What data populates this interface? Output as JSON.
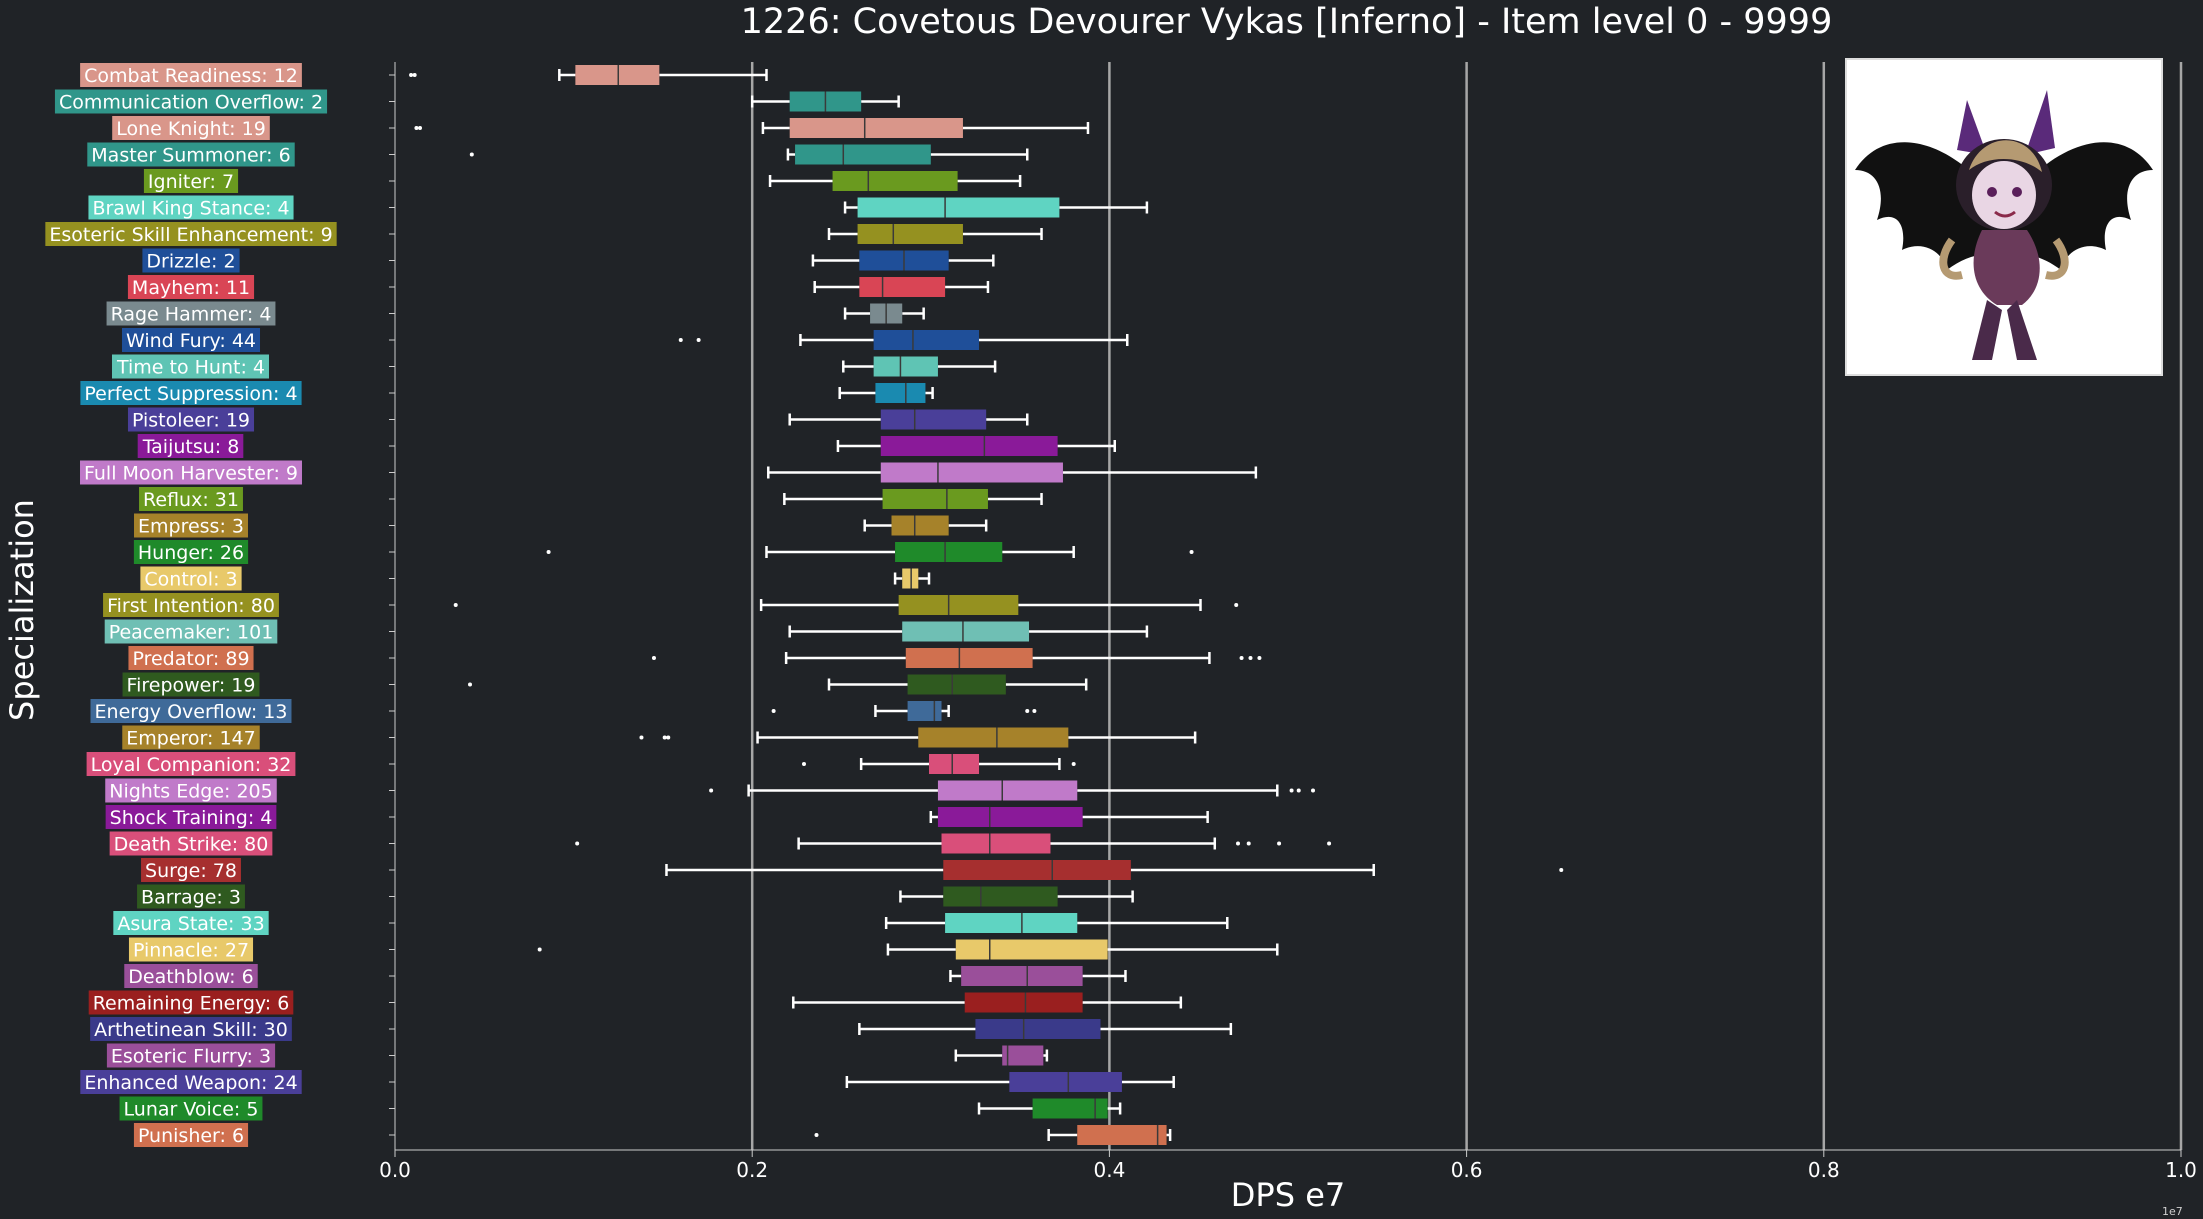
{
  "title": "1226: Covetous Devourer Vykas [Inferno] - Item level 0 - 9999",
  "chart_data": {
    "type": "box",
    "title": "1226: Covetous Devourer Vykas [Inferno] - Item level 0 - 9999",
    "xlabel": "DPS e7",
    "ylabel": "Specialization",
    "xlim": [
      0,
      1.0
    ],
    "x_ticks": [
      "0.0",
      "0.2",
      "0.4",
      "0.6",
      "0.8",
      "1.0"
    ],
    "x_tick_values": [
      0,
      0.2,
      0.4,
      0.6,
      0.8,
      1.0
    ],
    "x_offset_label": "1e7",
    "grid": "vertical",
    "series": [
      {
        "label": "Combat Readiness: 12",
        "color": "#d9968a",
        "whisker_low": 0.092,
        "q1": 0.101,
        "median": 0.125,
        "q3": 0.148,
        "whisker_high": 0.208,
        "outliers": [
          0.009,
          0.011
        ]
      },
      {
        "label": "Communication Overflow: 2",
        "color": "#30968a",
        "whisker_low": 0.2,
        "q1": 0.221,
        "median": 0.241,
        "q3": 0.261,
        "whisker_high": 0.282,
        "outliers": []
      },
      {
        "label": "Lone Knight: 19",
        "color": "#d9968a",
        "whisker_low": 0.206,
        "q1": 0.221,
        "median": 0.263,
        "q3": 0.318,
        "whisker_high": 0.388,
        "outliers": [
          0.012,
          0.014
        ]
      },
      {
        "label": "Master Summoner: 6",
        "color": "#30968a",
        "whisker_low": 0.22,
        "q1": 0.224,
        "median": 0.251,
        "q3": 0.3,
        "whisker_high": 0.354,
        "outliers": [
          0.043
        ]
      },
      {
        "label": "Igniter: 7",
        "color": "#6a9a1f",
        "whisker_low": 0.21,
        "q1": 0.245,
        "median": 0.265,
        "q3": 0.315,
        "whisker_high": 0.35,
        "outliers": []
      },
      {
        "label": "Brawl King Stance: 4",
        "color": "#5fd4c2",
        "whisker_low": 0.252,
        "q1": 0.259,
        "median": 0.308,
        "q3": 0.372,
        "whisker_high": 0.421,
        "outliers": []
      },
      {
        "label": "Esoteric Skill Enhancement: 9",
        "color": "#959120",
        "whisker_low": 0.243,
        "q1": 0.259,
        "median": 0.279,
        "q3": 0.318,
        "whisker_high": 0.362,
        "outliers": []
      },
      {
        "label": "Drizzle: 2",
        "color": "#1f4f99",
        "whisker_low": 0.234,
        "q1": 0.26,
        "median": 0.285,
        "q3": 0.31,
        "whisker_high": 0.335,
        "outliers": []
      },
      {
        "label": "Mayhem: 11",
        "color": "#d94555",
        "whisker_low": 0.235,
        "q1": 0.26,
        "median": 0.273,
        "q3": 0.308,
        "whisker_high": 0.332,
        "outliers": []
      },
      {
        "label": "Rage Hammer: 4",
        "color": "#7a8a8f",
        "whisker_low": 0.252,
        "q1": 0.266,
        "median": 0.275,
        "q3": 0.284,
        "whisker_high": 0.296,
        "outliers": []
      },
      {
        "label": "Wind Fury: 44",
        "color": "#1f4f99",
        "whisker_low": 0.227,
        "q1": 0.268,
        "median": 0.29,
        "q3": 0.327,
        "whisker_high": 0.41,
        "outliers": [
          0.16,
          0.17
        ]
      },
      {
        "label": "Time to Hunt: 4",
        "color": "#5fc4b4",
        "whisker_low": 0.251,
        "q1": 0.268,
        "median": 0.283,
        "q3": 0.304,
        "whisker_high": 0.336,
        "outliers": []
      },
      {
        "label": "Perfect Suppression: 4",
        "color": "#1a8ab0",
        "whisker_low": 0.249,
        "q1": 0.269,
        "median": 0.286,
        "q3": 0.297,
        "whisker_high": 0.301,
        "outliers": []
      },
      {
        "label": "Pistoleer: 19",
        "color": "#4a3f99",
        "whisker_low": 0.221,
        "q1": 0.272,
        "median": 0.291,
        "q3": 0.331,
        "whisker_high": 0.354,
        "outliers": []
      },
      {
        "label": "Taijutsu: 8",
        "color": "#8a1a99",
        "whisker_low": 0.248,
        "q1": 0.272,
        "median": 0.33,
        "q3": 0.371,
        "whisker_high": 0.403,
        "outliers": []
      },
      {
        "label": "Full Moon Harvester: 9",
        "color": "#c07ac9",
        "whisker_low": 0.209,
        "q1": 0.272,
        "median": 0.304,
        "q3": 0.374,
        "whisker_high": 0.482,
        "outliers": []
      },
      {
        "label": "Reflux: 31",
        "color": "#6a9a1f",
        "whisker_low": 0.218,
        "q1": 0.273,
        "median": 0.309,
        "q3": 0.332,
        "whisker_high": 0.362,
        "outliers": []
      },
      {
        "label": "Empress: 3",
        "color": "#a6822a",
        "whisker_low": 0.263,
        "q1": 0.278,
        "median": 0.291,
        "q3": 0.31,
        "whisker_high": 0.331,
        "outliers": []
      },
      {
        "label": "Hunger: 26",
        "color": "#1f8a2a",
        "whisker_low": 0.208,
        "q1": 0.28,
        "median": 0.308,
        "q3": 0.34,
        "whisker_high": 0.38,
        "outliers": [
          0.086,
          0.446
        ]
      },
      {
        "label": "Control: 3",
        "color": "#e8c96a",
        "whisker_low": 0.28,
        "q1": 0.284,
        "median": 0.289,
        "q3": 0.293,
        "whisker_high": 0.299,
        "outliers": []
      },
      {
        "label": "First Intention: 80",
        "color": "#959120",
        "whisker_low": 0.205,
        "q1": 0.282,
        "median": 0.31,
        "q3": 0.349,
        "whisker_high": 0.451,
        "outliers": [
          0.034,
          0.471
        ]
      },
      {
        "label": "Peacemaker: 101",
        "color": "#6fbfb4",
        "whisker_low": 0.221,
        "q1": 0.284,
        "median": 0.318,
        "q3": 0.355,
        "whisker_high": 0.421,
        "outliers": []
      },
      {
        "label": "Predator: 89",
        "color": "#d0704f",
        "whisker_low": 0.219,
        "q1": 0.286,
        "median": 0.316,
        "q3": 0.357,
        "whisker_high": 0.456,
        "outliers": [
          0.145,
          0.474,
          0.479,
          0.484
        ]
      },
      {
        "label": "Firepower: 19",
        "color": "#2f5a1f",
        "whisker_low": 0.243,
        "q1": 0.287,
        "median": 0.312,
        "q3": 0.342,
        "whisker_high": 0.387,
        "outliers": [
          0.042
        ]
      },
      {
        "label": "Energy Overflow: 13",
        "color": "#3f6a99",
        "whisker_low": 0.269,
        "q1": 0.287,
        "median": 0.302,
        "q3": 0.306,
        "whisker_high": 0.31,
        "outliers": [
          0.212,
          0.354,
          0.358
        ]
      },
      {
        "label": "Emperor: 147",
        "color": "#a6822a",
        "whisker_low": 0.203,
        "q1": 0.293,
        "median": 0.337,
        "q3": 0.377,
        "whisker_high": 0.448,
        "outliers": [
          0.138,
          0.151,
          0.153
        ]
      },
      {
        "label": "Loyal Companion: 32",
        "color": "#d94f7a",
        "whisker_low": 0.261,
        "q1": 0.299,
        "median": 0.312,
        "q3": 0.327,
        "whisker_high": 0.372,
        "outliers": [
          0.229,
          0.38
        ]
      },
      {
        "label": "Nights Edge: 205",
        "color": "#c07ac9",
        "whisker_low": 0.198,
        "q1": 0.304,
        "median": 0.34,
        "q3": 0.382,
        "whisker_high": 0.494,
        "outliers": [
          0.177,
          0.502,
          0.506,
          0.514
        ]
      },
      {
        "label": "Shock Training: 4",
        "color": "#8a1a99",
        "whisker_low": 0.3,
        "q1": 0.304,
        "median": 0.333,
        "q3": 0.385,
        "whisker_high": 0.455,
        "outliers": []
      },
      {
        "label": "Death Strike: 80",
        "color": "#d94f7a",
        "whisker_low": 0.226,
        "q1": 0.306,
        "median": 0.333,
        "q3": 0.367,
        "whisker_high": 0.459,
        "outliers": [
          0.102,
          0.472,
          0.478,
          0.495,
          0.523
        ]
      },
      {
        "label": "Surge: 78",
        "color": "#a62f2f",
        "whisker_low": 0.152,
        "q1": 0.307,
        "median": 0.368,
        "q3": 0.412,
        "whisker_high": 0.548,
        "outliers": [
          0.653
        ]
      },
      {
        "label": "Barrage: 3",
        "color": "#2f5a1f",
        "whisker_low": 0.283,
        "q1": 0.307,
        "median": 0.328,
        "q3": 0.371,
        "whisker_high": 0.413,
        "outliers": []
      },
      {
        "label": "Asura State: 33",
        "color": "#5fd4c2",
        "whisker_low": 0.275,
        "q1": 0.308,
        "median": 0.351,
        "q3": 0.382,
        "whisker_high": 0.466,
        "outliers": []
      },
      {
        "label": "Pinnacle: 27",
        "color": "#e8c96a",
        "whisker_low": 0.276,
        "q1": 0.314,
        "median": 0.333,
        "q3": 0.399,
        "whisker_high": 0.494,
        "outliers": [
          0.081
        ]
      },
      {
        "label": "Deathblow: 6",
        "color": "#9a4f9a",
        "whisker_low": 0.311,
        "q1": 0.317,
        "median": 0.354,
        "q3": 0.385,
        "whisker_high": 0.409,
        "outliers": []
      },
      {
        "label": "Remaining Energy: 6",
        "color": "#9a1f1f",
        "whisker_low": 0.223,
        "q1": 0.319,
        "median": 0.353,
        "q3": 0.385,
        "whisker_high": 0.44,
        "outliers": []
      },
      {
        "label": "Arthetinean Skill: 30",
        "color": "#3a3a8a",
        "whisker_low": 0.26,
        "q1": 0.325,
        "median": 0.352,
        "q3": 0.395,
        "whisker_high": 0.468,
        "outliers": []
      },
      {
        "label": "Esoteric Flurry: 3",
        "color": "#9a4f9a",
        "whisker_low": 0.314,
        "q1": 0.34,
        "median": 0.343,
        "q3": 0.363,
        "whisker_high": 0.365,
        "outliers": []
      },
      {
        "label": "Enhanced Weapon: 24",
        "color": "#4a3f99",
        "whisker_low": 0.253,
        "q1": 0.344,
        "median": 0.377,
        "q3": 0.407,
        "whisker_high": 0.436,
        "outliers": []
      },
      {
        "label": "Lunar Voice: 5",
        "color": "#1f8a2a",
        "whisker_low": 0.327,
        "q1": 0.357,
        "median": 0.392,
        "q3": 0.399,
        "whisker_high": 0.406,
        "outliers": []
      },
      {
        "label": "Punisher: 6",
        "color": "#d0704f",
        "whisker_low": 0.366,
        "q1": 0.382,
        "median": 0.427,
        "q3": 0.432,
        "whisker_high": 0.434,
        "outliers": [
          0.236
        ]
      }
    ]
  }
}
